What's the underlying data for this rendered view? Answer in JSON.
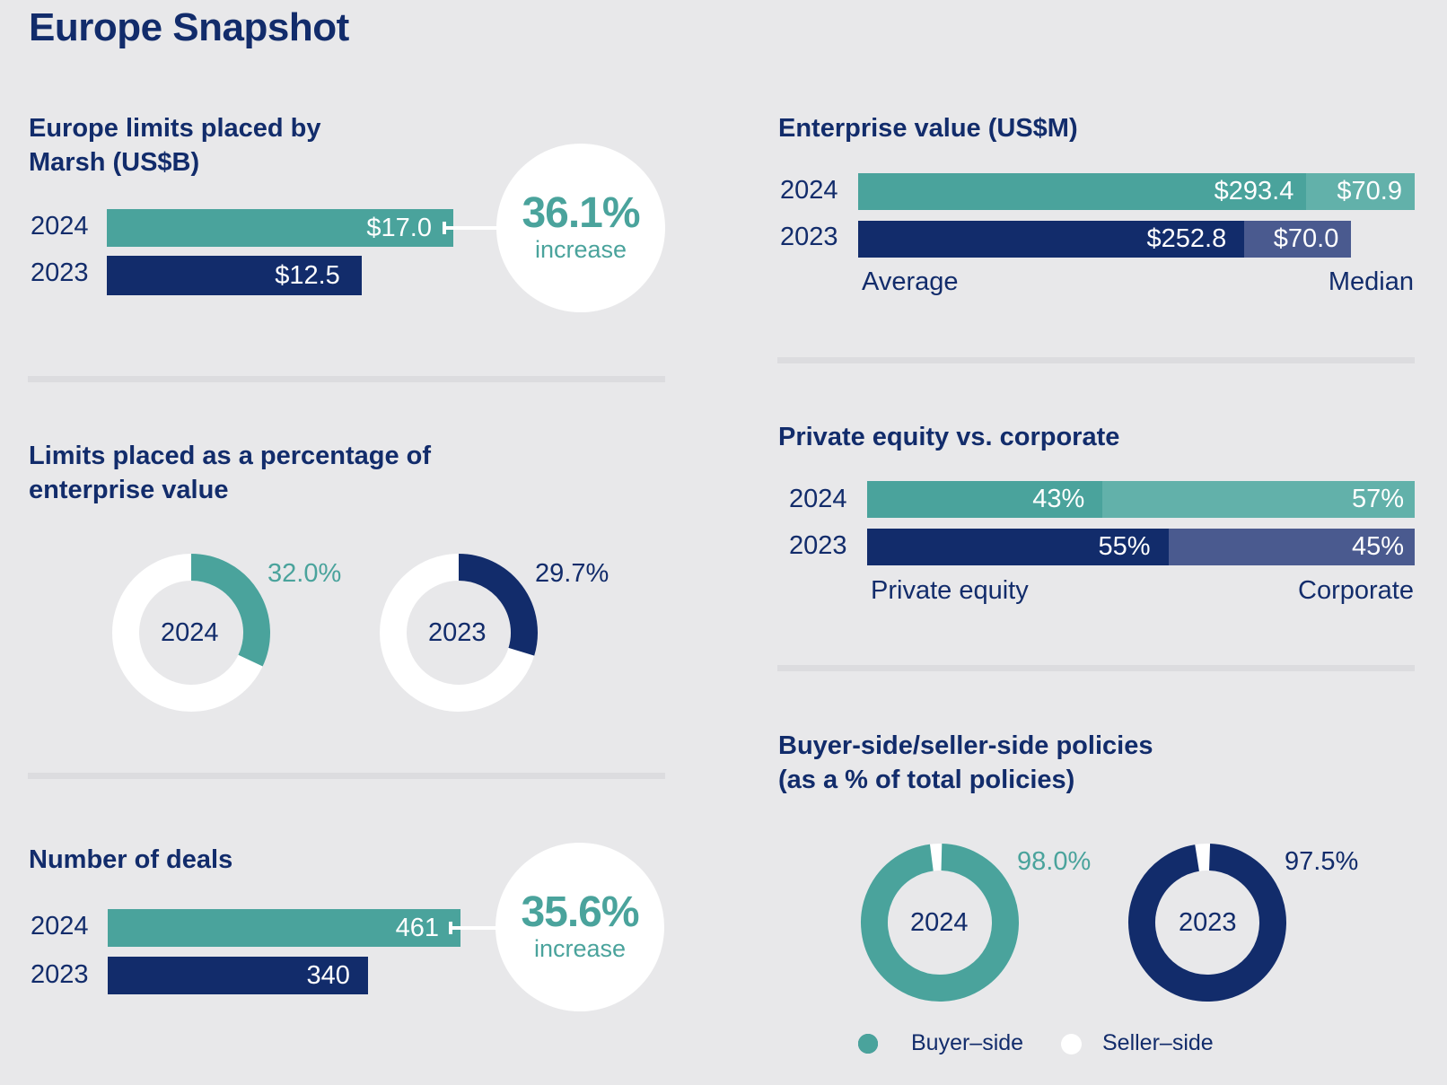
{
  "title": "Europe Snapshot",
  "colors": {
    "teal": "#4aa39c",
    "teal_light": "#62b1aa",
    "navy": "#122c6b",
    "navy_light": "#4a5a8f",
    "white": "#ffffff",
    "background": "#e8e8ea"
  },
  "chart_data": [
    {
      "id": "limits",
      "type": "bar",
      "title": "Europe limits placed by Marsh (US$B)",
      "title_lines": [
        "Europe limits placed by",
        "Marsh (US$B)"
      ],
      "categories": [
        "2024",
        "2023"
      ],
      "values": [
        17.0,
        12.5
      ],
      "labels": [
        "$17.0",
        "$12.5"
      ],
      "callout": {
        "value": "36.1%",
        "text": "increase"
      }
    },
    {
      "id": "enterprise_value",
      "type": "bar",
      "title": "Enterprise value (US$M)",
      "categories": [
        "2024",
        "2023"
      ],
      "series": [
        {
          "name": "Average",
          "values": [
            293.4,
            252.8
          ],
          "labels": [
            "$293.4",
            "$252.8"
          ]
        },
        {
          "name": "Median",
          "values": [
            70.9,
            70.0
          ],
          "labels": [
            "$70.9",
            "$70.0"
          ]
        }
      ],
      "axis_left_label": "Average",
      "axis_right_label": "Median"
    },
    {
      "id": "limits_pct_ev",
      "type": "pie",
      "title": "Limits placed as a percentage of enterprise value",
      "title_lines": [
        "Limits placed as a percentage of",
        "enterprise value"
      ],
      "items": [
        {
          "year": "2024",
          "value": 32.0,
          "label": "32.0%"
        },
        {
          "year": "2023",
          "value": 29.7,
          "label": "29.7%"
        }
      ]
    },
    {
      "id": "pe_vs_corporate",
      "type": "bar",
      "title": "Private equity vs. corporate",
      "categories": [
        "2024",
        "2023"
      ],
      "series": [
        {
          "name": "Private equity",
          "values": [
            43,
            55
          ],
          "labels": [
            "43%",
            "55%"
          ]
        },
        {
          "name": "Corporate",
          "values": [
            57,
            45
          ],
          "labels": [
            "57%",
            "45%"
          ]
        }
      ],
      "axis_left_label": "Private equity",
      "axis_right_label": "Corporate"
    },
    {
      "id": "deals",
      "type": "bar",
      "title": "Number of deals",
      "categories": [
        "2024",
        "2023"
      ],
      "values": [
        461,
        340
      ],
      "labels": [
        "461",
        "340"
      ],
      "callout": {
        "value": "35.6%",
        "text": "increase"
      }
    },
    {
      "id": "buyer_seller",
      "type": "pie",
      "title": "Buyer-side/seller-side policies (as a % of total policies)",
      "title_lines": [
        "Buyer-side/seller-side policies",
        "(as a % of total policies)"
      ],
      "items": [
        {
          "year": "2024",
          "value": 98.0,
          "label": "98.0%"
        },
        {
          "year": "2023",
          "value": 97.5,
          "label": "97.5%"
        }
      ],
      "legend": [
        "Buyer–side",
        "Seller–side"
      ]
    }
  ]
}
